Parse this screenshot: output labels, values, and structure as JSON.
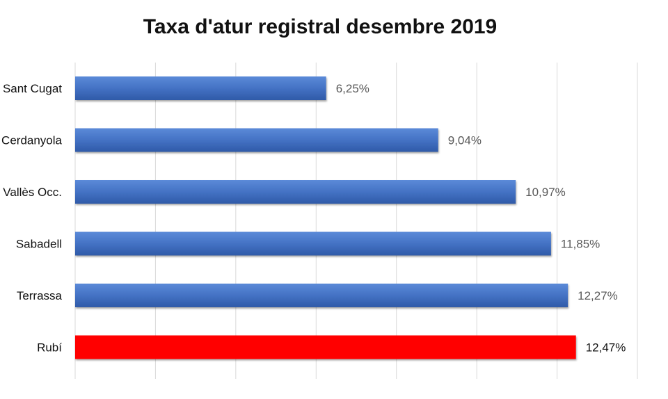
{
  "chart_data": {
    "type": "bar",
    "orientation": "horizontal",
    "title": "Taxa d'atur registral desembre 2019",
    "xlabel": "",
    "ylabel": "",
    "categories": [
      "Sant Cugat",
      "Cerdanyola",
      "Vallès Occ.",
      "Sabadell",
      "Terrassa",
      "Rubí"
    ],
    "values": [
      6.25,
      9.04,
      10.97,
      11.85,
      12.27,
      12.47
    ],
    "value_labels": [
      "6,25%",
      "9,04%",
      "10,97%",
      "11,85%",
      "12,27%",
      "12,47%"
    ],
    "xlim": [
      0,
      14
    ],
    "grid": true,
    "legend": "none",
    "colors": {
      "default": "#4472C4",
      "highlight": "#FF0000",
      "highlight_category": "Rubí",
      "label_default": "#595959",
      "label_highlight": "#111111",
      "gridline": "#d9d9d9"
    }
  }
}
